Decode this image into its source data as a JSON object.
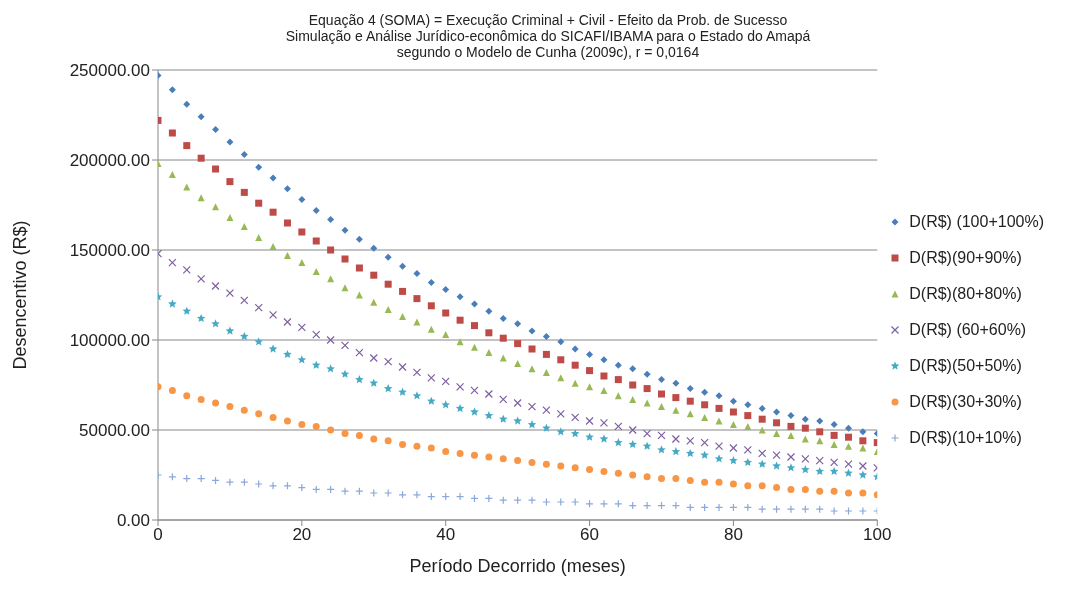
{
  "chart_data": {
    "type": "scatter",
    "title": "Equação 4 (SOMA) = Execução Criminal  + Civil - Efeito da Prob. de Sucesso",
    "subtitle": "Simulação e Análise Jurídico-econômica do SICAFI/IBAMA para o Estado do Amapá segundo o Modelo de Cunha (2009c), r = 0,0164",
    "xlabel": "Período Decorrido (meses)",
    "ylabel": "Desencentivo (R$)",
    "x": [
      0,
      2,
      4,
      6,
      8,
      10,
      12,
      14,
      16,
      18,
      20,
      22,
      24,
      26,
      28,
      30,
      32,
      34,
      36,
      38,
      40,
      42,
      44,
      46,
      48,
      50,
      52,
      54,
      56,
      58,
      60,
      62,
      64,
      66,
      68,
      70,
      72,
      74,
      76,
      78,
      80,
      82,
      84,
      86,
      88,
      90,
      92,
      94,
      96,
      98,
      100
    ],
    "xlim": [
      0,
      100
    ],
    "xticks": [
      0,
      20,
      40,
      60,
      80,
      100
    ],
    "ylim": [
      0,
      250000
    ],
    "yticks": [
      {
        "value": 0,
        "label": "0.00"
      },
      {
        "value": 50000,
        "label": "50000.00"
      },
      {
        "value": 100000,
        "label": "100000.00"
      },
      {
        "value": 150000,
        "label": "150000.00"
      },
      {
        "value": 200000,
        "label": "200000.00"
      },
      {
        "value": 250000,
        "label": "250000.00"
      }
    ],
    "grid": "y",
    "legend": "right",
    "series": [
      {
        "name": "D(R$) (100+100%)",
        "color": "#4a7ebb",
        "marker": "diamond",
        "values": [
          247000,
          239000,
          231000,
          224000,
          217000,
          210000,
          203000,
          196000,
          190000,
          184000,
          178000,
          172000,
          167000,
          161000,
          156000,
          151000,
          146000,
          141000,
          137000,
          132000,
          128000,
          124000,
          120000,
          116000,
          112000,
          109000,
          105000,
          102000,
          99000,
          95000,
          92000,
          89000,
          86000,
          84000,
          81000,
          78000,
          76000,
          73000,
          71000,
          69000,
          66000,
          64000,
          62000,
          60000,
          58000,
          56000,
          55000,
          53000,
          51000,
          49000,
          48000
        ]
      },
      {
        "name": "D(R$)(90+90%)",
        "color": "#be4b48",
        "marker": "square",
        "values": [
          222000,
          215000,
          208000,
          201000,
          195000,
          188000,
          182000,
          176000,
          171000,
          165000,
          160000,
          155000,
          150000,
          145000,
          140000,
          136000,
          131000,
          127000,
          123000,
          119000,
          115000,
          111000,
          108000,
          104000,
          101000,
          98000,
          95000,
          92000,
          89000,
          86000,
          83000,
          80000,
          78000,
          75000,
          73000,
          70000,
          68000,
          66000,
          64000,
          62000,
          60000,
          58000,
          56000,
          54000,
          52000,
          51000,
          49000,
          47000,
          46000,
          44000,
          43000
        ]
      },
      {
        "name": "D(R$)(80+80%)",
        "color": "#98b954",
        "marker": "triangle",
        "values": [
          198000,
          192000,
          185000,
          179000,
          174000,
          168000,
          163000,
          157000,
          152000,
          147000,
          143000,
          138000,
          134000,
          129000,
          125000,
          121000,
          117000,
          113000,
          110000,
          106000,
          103000,
          99000,
          96000,
          93000,
          90000,
          87000,
          84000,
          82000,
          79000,
          76000,
          74000,
          72000,
          69000,
          67000,
          65000,
          63000,
          61000,
          59000,
          57000,
          55000,
          53000,
          52000,
          50000,
          48000,
          47000,
          45000,
          44000,
          42000,
          41000,
          40000,
          38000
        ]
      },
      {
        "name": "D(R$) (60+60%)",
        "color": "#7d60a0",
        "marker": "cross",
        "values": [
          148000,
          143000,
          139000,
          134000,
          130000,
          126000,
          122000,
          118000,
          114000,
          110000,
          107000,
          103000,
          100000,
          97000,
          93000,
          90000,
          88000,
          85000,
          82000,
          79000,
          77000,
          74000,
          72000,
          70000,
          67000,
          65000,
          63000,
          61000,
          59000,
          57000,
          55000,
          54000,
          52000,
          50000,
          48000,
          47000,
          45000,
          44000,
          43000,
          41000,
          40000,
          39000,
          37000,
          36000,
          35000,
          34000,
          33000,
          32000,
          31000,
          30000,
          29000
        ]
      },
      {
        "name": "D(R$)(50+50%)",
        "color": "#46aac5",
        "marker": "star",
        "values": [
          124000,
          120000,
          116000,
          112000,
          109000,
          105000,
          102000,
          99000,
          95000,
          92000,
          89000,
          86000,
          84000,
          81000,
          78000,
          76000,
          73000,
          71000,
          69000,
          66000,
          64000,
          62000,
          60000,
          58000,
          56000,
          55000,
          53000,
          51000,
          49000,
          48000,
          46000,
          45000,
          43000,
          42000,
          41000,
          39000,
          38000,
          37000,
          36000,
          34000,
          33000,
          32000,
          31000,
          30000,
          29000,
          28000,
          27000,
          27000,
          26000,
          25000,
          24000
        ]
      },
      {
        "name": "D(R$)(30+30%)",
        "color": "#f79646",
        "marker": "circle",
        "values": [
          74000,
          72000,
          69000,
          67000,
          65000,
          63000,
          61000,
          59000,
          57000,
          55000,
          53000,
          52000,
          50000,
          48000,
          47000,
          45000,
          44000,
          42000,
          41000,
          40000,
          38000,
          37000,
          36000,
          35000,
          34000,
          33000,
          32000,
          31000,
          30000,
          29000,
          28000,
          27000,
          26000,
          25000,
          24000,
          23000,
          23000,
          22000,
          21000,
          21000,
          20000,
          19000,
          19000,
          18000,
          17000,
          17000,
          16000,
          16000,
          15000,
          15000,
          14000
        ]
      },
      {
        "name": "D(R$)(10+10%)",
        "color": "#8aa8d8",
        "marker": "plus",
        "values": [
          25000,
          24000,
          23000,
          23000,
          22000,
          21000,
          21000,
          20000,
          19000,
          19000,
          18000,
          17000,
          17000,
          16000,
          16000,
          15000,
          15000,
          14000,
          14000,
          13000,
          13000,
          13000,
          12000,
          12000,
          11000,
          11000,
          11000,
          10000,
          10000,
          10000,
          9000,
          9000,
          9000,
          8000,
          8000,
          8000,
          8000,
          7000,
          7000,
          7000,
          7000,
          7000,
          6000,
          6000,
          6000,
          6000,
          6000,
          5000,
          5000,
          5000,
          5000
        ]
      }
    ]
  }
}
